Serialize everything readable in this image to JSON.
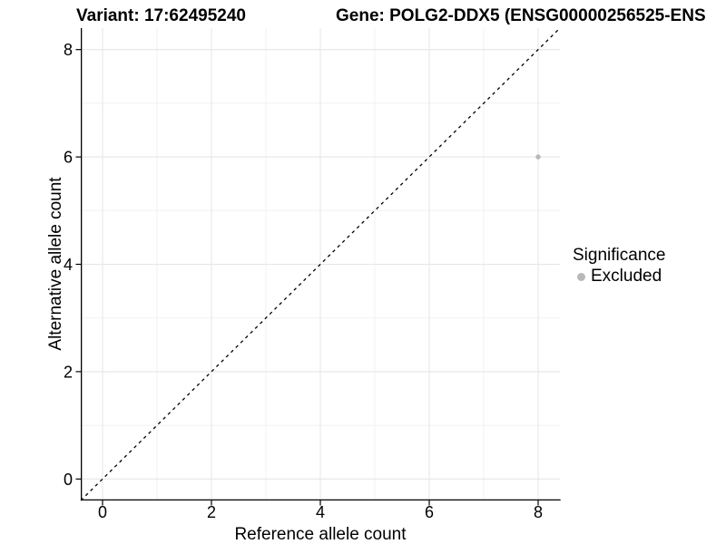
{
  "chart_data": {
    "type": "scatter",
    "title": "Variant: 17:62495240",
    "subtitle": "Gene: POLG2-DDX5 (ENSG00000256525-ENS",
    "xlabel": "Reference allele count",
    "ylabel": "Alternative allele count",
    "xlim": [
      -0.4,
      8.4
    ],
    "ylim": [
      -0.4,
      8.4
    ],
    "x_ticks": [
      0,
      2,
      4,
      6,
      8
    ],
    "y_ticks": [
      0,
      2,
      4,
      6,
      8
    ],
    "x_minor_ticks": [
      1,
      3,
      5,
      7
    ],
    "y_minor_ticks": [
      1,
      3,
      5,
      7
    ],
    "grid": true,
    "legend": {
      "position": "right",
      "title": "Significance",
      "items": [
        {
          "label": "Excluded",
          "color": "#b8b8b8"
        }
      ]
    },
    "series": [
      {
        "name": "Excluded",
        "color": "#b8b8b8",
        "point_radius": 2.7,
        "points": [
          {
            "x": 8,
            "y": 6
          }
        ]
      }
    ],
    "reference_line": {
      "kind": "identity y = x",
      "style": "dashed",
      "color": "#000000"
    },
    "styles": {
      "axis_color": "#000000",
      "tick_label_color": "#000000",
      "grid_major_color": "#e6e6e6",
      "grid_minor_color": "#f1f1f1",
      "background": "#ffffff"
    }
  }
}
